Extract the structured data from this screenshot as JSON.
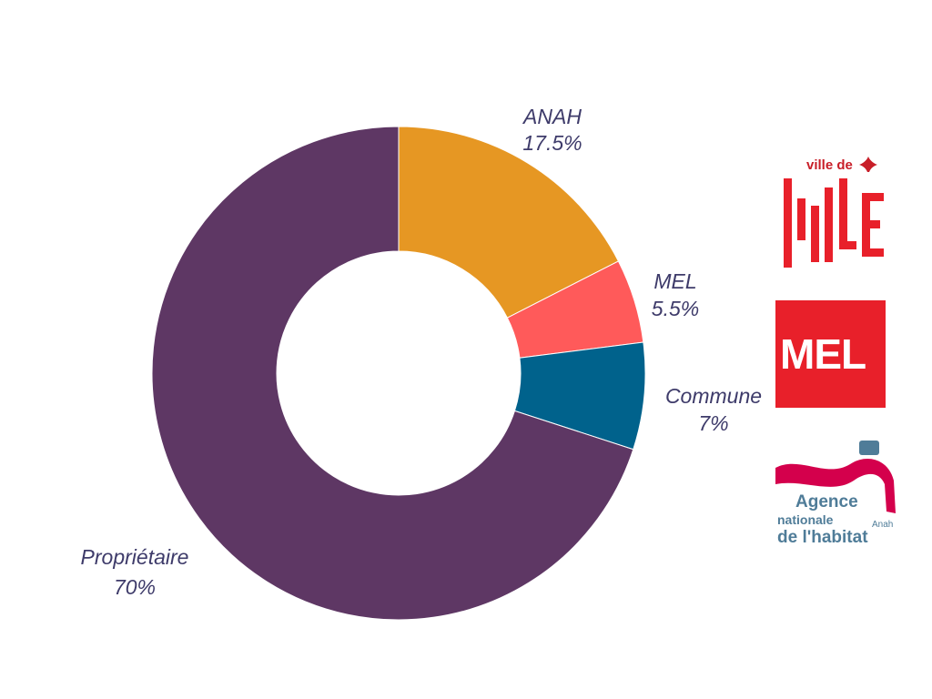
{
  "chart_data": {
    "type": "pie",
    "donut": true,
    "slices": [
      {
        "label": "ANAH",
        "value": 17.5,
        "value_label": "17.5%",
        "color": "#E69723"
      },
      {
        "label": "MEL",
        "value": 5.5,
        "value_label": "5.5%",
        "color": "#FF5A5A"
      },
      {
        "label": "Commune",
        "value": 7,
        "value_label": "7%",
        "color": "#00628C"
      },
      {
        "label": "Propriétaire",
        "value": 70,
        "value_label": "70%",
        "color": "#5E3764"
      }
    ],
    "label_color": "#3E3B6A",
    "legend": "none"
  },
  "logos": {
    "lille": {
      "text": "ville de Lille",
      "color": "#C81E28"
    },
    "mel": {
      "text": "MEL",
      "color": "#E8202A"
    },
    "anah": {
      "text": "Agence nationale de l'habitat Anah",
      "color": "#4F7C98",
      "accent": "#D4004C"
    }
  }
}
